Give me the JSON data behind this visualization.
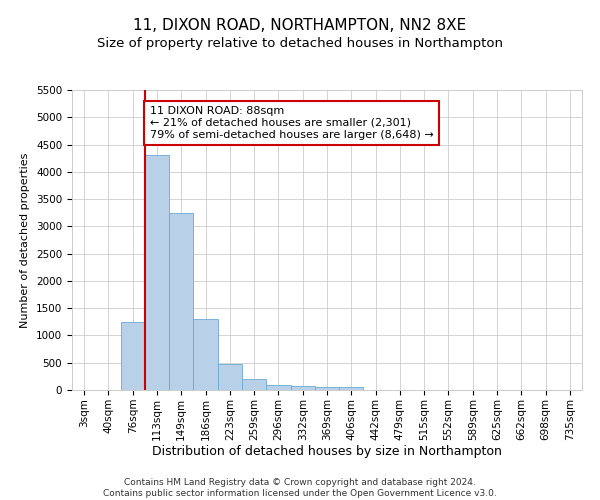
{
  "title": "11, DIXON ROAD, NORTHAMPTON, NN2 8XE",
  "subtitle": "Size of property relative to detached houses in Northampton",
  "xlabel": "Distribution of detached houses by size in Northampton",
  "ylabel": "Number of detached properties",
  "footer_line1": "Contains HM Land Registry data © Crown copyright and database right 2024.",
  "footer_line2": "Contains public sector information licensed under the Open Government Licence v3.0.",
  "categories": [
    "3sqm",
    "40sqm",
    "76sqm",
    "113sqm",
    "149sqm",
    "186sqm",
    "223sqm",
    "259sqm",
    "296sqm",
    "332sqm",
    "369sqm",
    "406sqm",
    "442sqm",
    "479sqm",
    "515sqm",
    "552sqm",
    "589sqm",
    "625sqm",
    "662sqm",
    "698sqm",
    "735sqm"
  ],
  "values": [
    0,
    0,
    1250,
    4300,
    3250,
    1300,
    475,
    200,
    100,
    75,
    50,
    50,
    0,
    0,
    0,
    0,
    0,
    0,
    0,
    0,
    0
  ],
  "bar_color": "#b8d0e8",
  "bar_edge_color": "#6aaad4",
  "red_line_x": 2.5,
  "annotation_line1": "11 DIXON ROAD: 88sqm",
  "annotation_line2": "← 21% of detached houses are smaller (2,301)",
  "annotation_line3": "79% of semi-detached houses are larger (8,648) →",
  "ylim": [
    0,
    5500
  ],
  "yticks": [
    0,
    500,
    1000,
    1500,
    2000,
    2500,
    3000,
    3500,
    4000,
    4500,
    5000,
    5500
  ],
  "annotation_box_color": "#ffffff",
  "annotation_box_edge": "#cc0000",
  "title_fontsize": 11,
  "subtitle_fontsize": 9.5,
  "xlabel_fontsize": 9,
  "ylabel_fontsize": 8,
  "tick_fontsize": 7.5,
  "annotation_fontsize": 8,
  "footer_fontsize": 6.5
}
